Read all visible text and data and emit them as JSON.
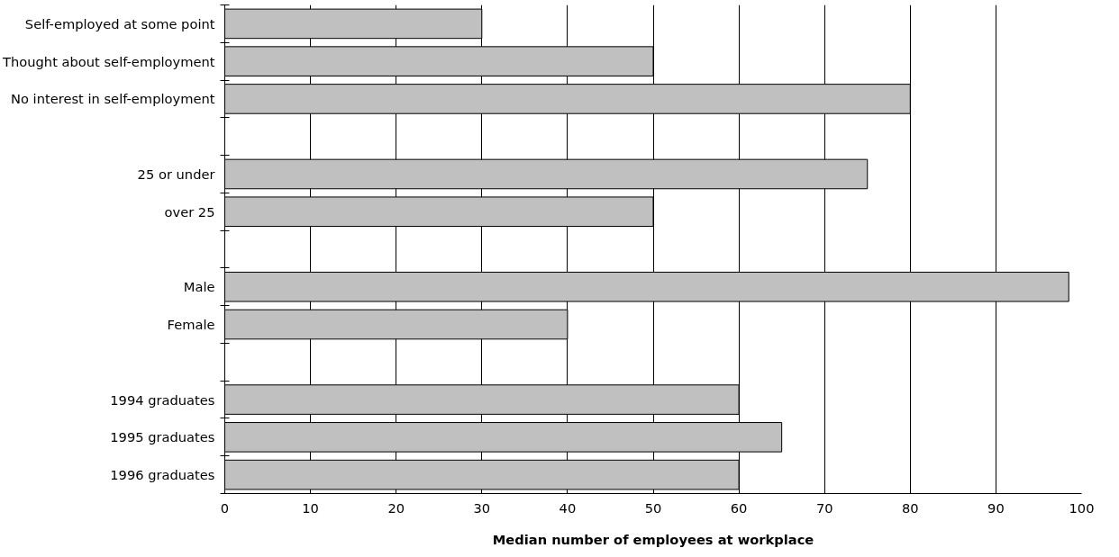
{
  "chart_data": {
    "type": "bar",
    "orientation": "horizontal",
    "xlabel": "Median number of employees at workplace",
    "categories": [
      "Self-employed at some point",
      "Thought about self-employment",
      "No interest in self-employment",
      null,
      "25 or under",
      "over 25",
      null,
      "Male",
      "Female",
      null,
      "1994 graduates",
      "1995 graduates",
      "1996 graduates"
    ],
    "values": [
      30,
      50,
      80,
      null,
      75,
      50,
      null,
      98.5,
      40,
      null,
      60,
      65,
      60
    ],
    "color": "#c0c0c0",
    "xlim": [
      0,
      100
    ],
    "xticks": [
      0,
      10,
      20,
      30,
      40,
      50,
      60,
      70,
      80,
      90,
      100
    ],
    "grid": "x"
  }
}
